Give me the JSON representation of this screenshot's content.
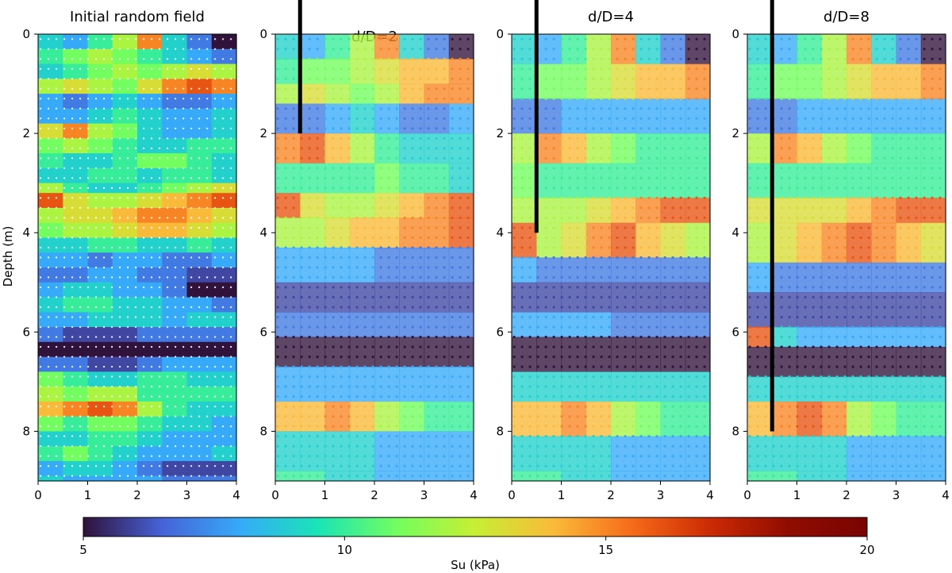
{
  "chart_data": [
    {
      "type": "heatmap",
      "title": "Initial random field",
      "xlabel": "",
      "ylabel": "Depth (m)",
      "xlim": [
        0,
        4
      ],
      "ylim": [
        9,
        0
      ],
      "xticks": [
        0,
        1,
        2,
        3,
        4
      ],
      "yticks": [
        0,
        2,
        4,
        6,
        8
      ],
      "pile_tip_depth": null,
      "layers": [
        {
          "depth": 0.0,
          "su": [
            9,
            8,
            10,
            12,
            15,
            9,
            7,
            5
          ]
        },
        {
          "depth": 0.3,
          "su": [
            10,
            11,
            12,
            11,
            10,
            9,
            8,
            7
          ]
        },
        {
          "depth": 0.6,
          "su": [
            9,
            10,
            11,
            12,
            11,
            12,
            13,
            12
          ]
        },
        {
          "depth": 0.9,
          "su": [
            12,
            13,
            12,
            11,
            13,
            15,
            16,
            15
          ]
        },
        {
          "depth": 1.2,
          "su": [
            8,
            7,
            8,
            9,
            8,
            7,
            7,
            8
          ]
        },
        {
          "depth": 1.5,
          "su": [
            8,
            8,
            9,
            10,
            9,
            8,
            8,
            9
          ]
        },
        {
          "depth": 1.8,
          "su": [
            13,
            15,
            12,
            11,
            9,
            8,
            8,
            9
          ]
        },
        {
          "depth": 2.1,
          "su": [
            11,
            12,
            11,
            10,
            9,
            9,
            10,
            10
          ]
        },
        {
          "depth": 2.4,
          "su": [
            10,
            9,
            9,
            10,
            11,
            11,
            10,
            9
          ]
        },
        {
          "depth": 2.7,
          "su": [
            9,
            9,
            10,
            10,
            9,
            10,
            10,
            9
          ]
        },
        {
          "depth": 3.0,
          "su": [
            12,
            10,
            9,
            9,
            10,
            11,
            12,
            13
          ]
        },
        {
          "depth": 3.2,
          "su": [
            16,
            13,
            12,
            12,
            13,
            14,
            15,
            16
          ]
        },
        {
          "depth": 3.5,
          "su": [
            12,
            13,
            13,
            14,
            15,
            15,
            14,
            13
          ]
        },
        {
          "depth": 3.8,
          "su": [
            11,
            12,
            12,
            13,
            14,
            14,
            13,
            12
          ]
        },
        {
          "depth": 4.1,
          "su": [
            9,
            9,
            10,
            10,
            9,
            9,
            10,
            9
          ]
        },
        {
          "depth": 4.4,
          "su": [
            8,
            8,
            7,
            8,
            8,
            7,
            7,
            8
          ]
        },
        {
          "depth": 4.7,
          "su": [
            7,
            7,
            8,
            8,
            7,
            7,
            6,
            6
          ]
        },
        {
          "depth": 5.0,
          "su": [
            8,
            9,
            9,
            8,
            8,
            7,
            5,
            5
          ]
        },
        {
          "depth": 5.3,
          "su": [
            9,
            10,
            10,
            9,
            9,
            8,
            8,
            7
          ]
        },
        {
          "depth": 5.6,
          "su": [
            8,
            8,
            9,
            9,
            9,
            8,
            9,
            9
          ]
        },
        {
          "depth": 5.9,
          "su": [
            7,
            6,
            6,
            6,
            7,
            7,
            7,
            7
          ]
        },
        {
          "depth": 6.2,
          "su": [
            5,
            5,
            5,
            5,
            5,
            5,
            5,
            5
          ]
        },
        {
          "depth": 6.5,
          "su": [
            7,
            7,
            6,
            6,
            7,
            8,
            8,
            8
          ]
        },
        {
          "depth": 6.8,
          "su": [
            11,
            10,
            9,
            9,
            10,
            10,
            9,
            9
          ]
        },
        {
          "depth": 7.1,
          "su": [
            12,
            11,
            12,
            12,
            10,
            10,
            10,
            10
          ]
        },
        {
          "depth": 7.4,
          "su": [
            14,
            15,
            16,
            15,
            12,
            10,
            9,
            9
          ]
        },
        {
          "depth": 7.7,
          "su": [
            11,
            10,
            11,
            11,
            10,
            9,
            9,
            8
          ]
        },
        {
          "depth": 8.0,
          "su": [
            9,
            9,
            10,
            10,
            9,
            8,
            8,
            8
          ]
        },
        {
          "depth": 8.3,
          "su": [
            10,
            11,
            10,
            9,
            8,
            8,
            8,
            9
          ]
        },
        {
          "depth": 8.6,
          "su": [
            8,
            9,
            9,
            8,
            7,
            6,
            6,
            6
          ]
        },
        {
          "depth": 8.9,
          "su": [
            9,
            8,
            8,
            8,
            8,
            7,
            7,
            7
          ]
        }
      ]
    },
    {
      "type": "scatter",
      "title": "d/D=2",
      "xlabel": "",
      "ylabel": "",
      "xlim": [
        0,
        4
      ],
      "ylim": [
        9,
        0
      ],
      "xticks": [
        0,
        1,
        2,
        3,
        4
      ],
      "yticks": [
        0,
        2,
        4,
        6,
        8
      ],
      "pile_tip_depth": 2,
      "pile_x": 0.5,
      "layers": [
        {
          "depth": 0.0,
          "su": [
            9,
            8,
            10,
            12,
            15,
            9,
            7,
            5
          ]
        },
        {
          "depth": 0.5,
          "su": [
            10,
            11,
            11,
            12,
            13,
            14,
            14,
            15
          ]
        },
        {
          "depth": 1.0,
          "su": [
            12,
            13,
            12,
            11,
            12,
            14,
            15,
            15
          ]
        },
        {
          "depth": 1.4,
          "su": [
            7,
            7,
            8,
            9,
            8,
            7,
            7,
            8
          ]
        },
        {
          "depth": 2.0,
          "su": [
            15,
            16,
            14,
            12,
            10,
            9,
            9,
            9
          ]
        },
        {
          "depth": 2.6,
          "su": [
            10,
            10,
            10,
            10,
            11,
            10,
            10,
            9
          ]
        },
        {
          "depth": 3.2,
          "su": [
            16,
            13,
            12,
            12,
            13,
            14,
            15,
            16
          ]
        },
        {
          "depth": 3.7,
          "su": [
            12,
            12,
            13,
            14,
            14,
            15,
            15,
            16
          ]
        },
        {
          "depth": 4.3,
          "su": [
            8,
            8,
            8,
            8,
            7,
            7,
            7,
            7
          ]
        },
        {
          "depth": 5.0,
          "su": [
            6,
            6,
            6,
            6,
            6,
            6,
            6,
            6
          ]
        },
        {
          "depth": 5.6,
          "su": [
            7,
            7,
            7,
            7,
            7,
            7,
            7,
            7
          ]
        },
        {
          "depth": 6.1,
          "su": [
            5,
            5,
            5,
            5,
            5,
            5,
            5,
            5
          ]
        },
        {
          "depth": 6.7,
          "su": [
            8,
            8,
            8,
            8,
            8,
            8,
            8,
            8
          ]
        },
        {
          "depth": 7.4,
          "su": [
            14,
            14,
            15,
            14,
            12,
            11,
            10,
            10
          ]
        },
        {
          "depth": 8.0,
          "su": [
            9,
            9,
            9,
            9,
            8,
            8,
            8,
            8
          ]
        },
        {
          "depth": 8.8,
          "su": [
            10,
            10,
            9,
            9,
            8,
            8,
            8,
            8
          ]
        }
      ]
    },
    {
      "type": "scatter",
      "title": "d/D=4",
      "xlabel": "",
      "ylabel": "",
      "xlim": [
        0,
        4
      ],
      "ylim": [
        9,
        0
      ],
      "xticks": [
        0,
        1,
        2,
        3,
        4
      ],
      "yticks": [
        0,
        2,
        4,
        6,
        8
      ],
      "pile_tip_depth": 4,
      "pile_x": 0.5,
      "layers": [
        {
          "depth": 0.0,
          "su": [
            9,
            8,
            10,
            12,
            15,
            9,
            7,
            5
          ]
        },
        {
          "depth": 0.6,
          "su": [
            10,
            11,
            11,
            12,
            13,
            14,
            14,
            15
          ]
        },
        {
          "depth": 1.3,
          "su": [
            7,
            7,
            8,
            8,
            8,
            8,
            8,
            8
          ]
        },
        {
          "depth": 2.0,
          "su": [
            12,
            15,
            14,
            12,
            11,
            10,
            10,
            10
          ]
        },
        {
          "depth": 2.6,
          "su": [
            11,
            10,
            10,
            10,
            10,
            10,
            10,
            10
          ]
        },
        {
          "depth": 3.3,
          "su": [
            12,
            12,
            12,
            13,
            14,
            15,
            16,
            16
          ]
        },
        {
          "depth": 3.8,
          "su": [
            16,
            12,
            13,
            15,
            16,
            14,
            13,
            12
          ]
        },
        {
          "depth": 4.5,
          "su": [
            8,
            7,
            7,
            7,
            7,
            7,
            7,
            7
          ]
        },
        {
          "depth": 5.0,
          "su": [
            6,
            6,
            6,
            6,
            6,
            6,
            6,
            6
          ]
        },
        {
          "depth": 5.6,
          "su": [
            8,
            8,
            8,
            8,
            7,
            7,
            7,
            7
          ]
        },
        {
          "depth": 6.1,
          "su": [
            5,
            5,
            5,
            5,
            5,
            5,
            5,
            5
          ]
        },
        {
          "depth": 6.8,
          "su": [
            9,
            9,
            9,
            9,
            9,
            9,
            9,
            9
          ]
        },
        {
          "depth": 7.4,
          "su": [
            14,
            14,
            15,
            14,
            12,
            11,
            10,
            10
          ]
        },
        {
          "depth": 8.1,
          "su": [
            9,
            9,
            9,
            9,
            8,
            8,
            8,
            8
          ]
        },
        {
          "depth": 8.8,
          "su": [
            10,
            10,
            9,
            9,
            8,
            8,
            8,
            8
          ]
        }
      ]
    },
    {
      "type": "scatter",
      "title": "d/D=8",
      "xlabel": "",
      "ylabel": "",
      "xlim": [
        0,
        4
      ],
      "ylim": [
        9,
        0
      ],
      "xticks": [
        0,
        1,
        2,
        3,
        4
      ],
      "yticks": [
        0,
        2,
        4,
        6,
        8
      ],
      "pile_tip_depth": 8,
      "pile_x": 0.5,
      "layers": [
        {
          "depth": 0.0,
          "su": [
            9,
            8,
            10,
            12,
            15,
            9,
            7,
            5
          ]
        },
        {
          "depth": 0.6,
          "su": [
            10,
            11,
            11,
            12,
            13,
            14,
            14,
            15
          ]
        },
        {
          "depth": 1.3,
          "su": [
            7,
            7,
            8,
            8,
            8,
            8,
            8,
            8
          ]
        },
        {
          "depth": 2.0,
          "su": [
            12,
            15,
            14,
            12,
            11,
            10,
            10,
            10
          ]
        },
        {
          "depth": 2.6,
          "su": [
            10,
            10,
            10,
            10,
            10,
            10,
            10,
            10
          ]
        },
        {
          "depth": 3.3,
          "su": [
            13,
            13,
            13,
            13,
            14,
            15,
            16,
            16
          ]
        },
        {
          "depth": 3.8,
          "su": [
            12,
            13,
            14,
            15,
            16,
            15,
            14,
            13
          ]
        },
        {
          "depth": 4.6,
          "su": [
            8,
            7,
            7,
            7,
            7,
            7,
            7,
            7
          ]
        },
        {
          "depth": 5.2,
          "su": [
            6,
            6,
            6,
            6,
            6,
            6,
            6,
            6
          ]
        },
        {
          "depth": 5.9,
          "su": [
            16,
            9,
            8,
            8,
            8,
            8,
            8,
            8
          ]
        },
        {
          "depth": 6.3,
          "su": [
            5,
            5,
            5,
            5,
            5,
            5,
            5,
            5
          ]
        },
        {
          "depth": 6.9,
          "su": [
            9,
            9,
            9,
            9,
            9,
            9,
            9,
            9
          ]
        },
        {
          "depth": 7.4,
          "su": [
            14,
            15,
            16,
            15,
            12,
            11,
            10,
            10
          ]
        },
        {
          "depth": 8.1,
          "su": [
            9,
            9,
            9,
            9,
            8,
            8,
            8,
            8
          ]
        },
        {
          "depth": 8.8,
          "su": [
            10,
            10,
            9,
            9,
            8,
            8,
            8,
            8
          ]
        }
      ]
    }
  ],
  "colorbar": {
    "label": "Su (kPa)",
    "range": [
      5,
      20
    ],
    "ticks": [
      5,
      10,
      15,
      20
    ],
    "colormap": "turbo"
  }
}
